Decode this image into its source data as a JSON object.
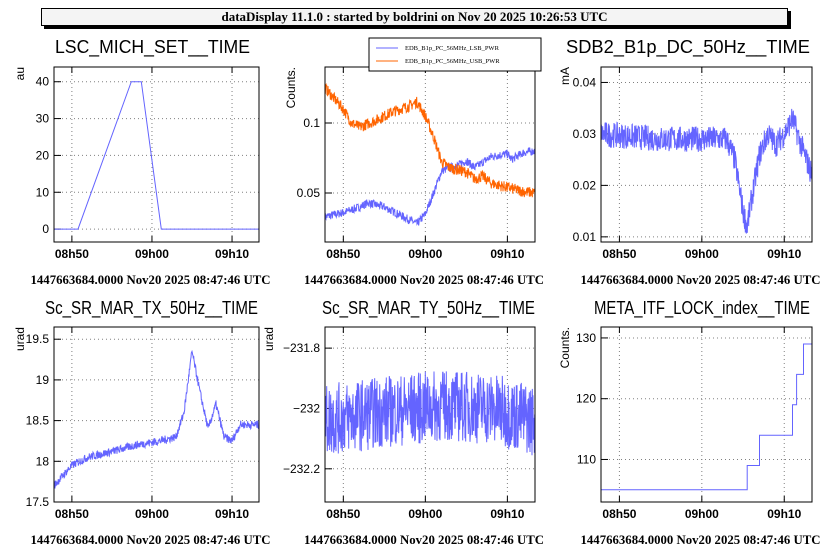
{
  "header": {
    "title": "dataDisplay 11.1.0 : started by boldrini on Nov 20 2025 10:26:53 UTC"
  },
  "footer_label": "1447663684.0000 Nov20 2025 08:47:46 UTC",
  "colors": {
    "blue": "#6464ff",
    "orange": "#ff6400",
    "frame": "#000000",
    "grid": "#808080"
  },
  "chart_data": [
    {
      "type": "line",
      "title": "LSC_MICH_SET__TIME",
      "ylabel": "au",
      "xlim": [
        "08:47:46",
        "09:13:22"
      ],
      "ylim": [
        -3.5,
        44
      ],
      "xticks": [
        "08h50",
        "09h00",
        "09h10"
      ],
      "yticks": [
        0,
        10,
        20,
        30,
        40
      ],
      "ytick_labels": [
        "0",
        "10",
        "20",
        "30",
        "40"
      ],
      "grid": true,
      "series": [
        {
          "color": "#6464ff",
          "noise": 0,
          "points": [
            [
              "08:47:46",
              0
            ],
            [
              "08:50:46",
              0
            ],
            [
              "08:57:25",
              40
            ],
            [
              "08:58:40",
              40
            ],
            [
              "09:01:10",
              0
            ],
            [
              "09:13:22",
              0
            ]
          ]
        }
      ]
    },
    {
      "type": "line",
      "title": "",
      "ylabel": "Counts.",
      "xlim": [
        "08:47:46",
        "09:13:22"
      ],
      "ylim": [
        0.015,
        0.14
      ],
      "xticks": [
        "08h50",
        "09h00",
        "09h10"
      ],
      "yticks": [
        0.05,
        0.1
      ],
      "ytick_labels": [
        "0.05",
        "0.1"
      ],
      "grid": true,
      "legend": "top",
      "series": [
        {
          "name": "EDB_B1p_PC_56MHz_LSB_PWR",
          "color": "#6464ff",
          "noise": 0.003,
          "points": [
            [
              "08:47:46",
              0.033
            ],
            [
              "08:50:00",
              0.036
            ],
            [
              "08:52:00",
              0.04
            ],
            [
              "08:53:00",
              0.043
            ],
            [
              "08:55:00",
              0.04
            ],
            [
              "08:58:00",
              0.031
            ],
            [
              "08:59:00",
              0.028
            ],
            [
              "09:00:00",
              0.035
            ],
            [
              "09:01:00",
              0.05
            ],
            [
              "09:02:00",
              0.066
            ],
            [
              "09:04:00",
              0.07
            ],
            [
              "09:05:00",
              0.073
            ],
            [
              "09:06:00",
              0.068
            ],
            [
              "09:07:00",
              0.072
            ],
            [
              "09:08:00",
              0.076
            ],
            [
              "09:10:00",
              0.078
            ],
            [
              "09:10:30",
              0.074
            ],
            [
              "09:12:00",
              0.079
            ],
            [
              "09:13:22",
              0.08
            ]
          ]
        },
        {
          "name": "EDB_B1p_PC_56MHz_USB_PWR",
          "color": "#ff6400",
          "noise": 0.004,
          "points": [
            [
              "08:47:46",
              0.125
            ],
            [
              "08:50:00",
              0.11
            ],
            [
              "08:51:00",
              0.1
            ],
            [
              "08:52:00",
              0.097
            ],
            [
              "08:54:00",
              0.102
            ],
            [
              "08:56:00",
              0.108
            ],
            [
              "08:58:00",
              0.112
            ],
            [
              "08:59:00",
              0.115
            ],
            [
              "09:00:00",
              0.105
            ],
            [
              "09:01:00",
              0.09
            ],
            [
              "09:02:00",
              0.072
            ],
            [
              "09:03:00",
              0.068
            ],
            [
              "09:05:00",
              0.065
            ],
            [
              "09:06:00",
              0.06
            ],
            [
              "09:07:00",
              0.062
            ],
            [
              "09:08:00",
              0.057
            ],
            [
              "09:10:00",
              0.054
            ],
            [
              "09:12:00",
              0.051
            ],
            [
              "09:13:22",
              0.05
            ]
          ]
        }
      ]
    },
    {
      "type": "line",
      "title": "SDB2_B1p_DC_50Hz__TIME",
      "ylabel": "mA",
      "xlim": [
        "08:47:46",
        "09:13:22"
      ],
      "ylim": [
        0.009,
        0.043
      ],
      "xticks": [
        "08h50",
        "09h00",
        "09h10"
      ],
      "yticks": [
        0.01,
        0.02,
        0.03,
        0.04
      ],
      "ytick_labels": [
        "0.01",
        "0.02",
        "0.03",
        "0.04"
      ],
      "grid": true,
      "series": [
        {
          "color": "#6464ff",
          "noise": 0.0025,
          "points": [
            [
              "08:47:46",
              0.03
            ],
            [
              "08:55:00",
              0.029
            ],
            [
              "09:03:00",
              0.029
            ],
            [
              "09:04:00",
              0.025
            ],
            [
              "09:05:00",
              0.015
            ],
            [
              "09:05:30",
              0.012
            ],
            [
              "09:06:00",
              0.017
            ],
            [
              "09:07:00",
              0.026
            ],
            [
              "09:08:00",
              0.03
            ],
            [
              "09:09:00",
              0.028
            ],
            [
              "09:10:00",
              0.03
            ],
            [
              "09:11:00",
              0.033
            ],
            [
              "09:12:00",
              0.028
            ],
            [
              "09:13:22",
              0.022
            ]
          ]
        }
      ]
    },
    {
      "type": "line",
      "title": "Sc_SR_MAR_TX_50Hz__TIME",
      "ylabel": "urad",
      "xlim": [
        "08:47:46",
        "09:13:22"
      ],
      "ylim": [
        17.5,
        19.65
      ],
      "xticks": [
        "08h50",
        "09h00",
        "09h10"
      ],
      "yticks": [
        17.5,
        18,
        18.5,
        19,
        19.5
      ],
      "ytick_labels": [
        "17.5",
        "18",
        "18.5",
        "19",
        "19.5"
      ],
      "grid": true,
      "series": [
        {
          "color": "#6464ff",
          "noise": 0.05,
          "points": [
            [
              "08:47:46",
              17.7
            ],
            [
              "08:50:00",
              17.95
            ],
            [
              "08:52:00",
              18.05
            ],
            [
              "08:55:00",
              18.12
            ],
            [
              "08:58:00",
              18.2
            ],
            [
              "09:01:00",
              18.25
            ],
            [
              "09:03:00",
              18.3
            ],
            [
              "09:04:00",
              18.6
            ],
            [
              "09:05:00",
              19.35
            ],
            [
              "09:06:00",
              18.85
            ],
            [
              "09:07:00",
              18.4
            ],
            [
              "09:08:00",
              18.7
            ],
            [
              "09:09:00",
              18.3
            ],
            [
              "09:10:00",
              18.25
            ],
            [
              "09:11:00",
              18.45
            ],
            [
              "09:13:22",
              18.45
            ]
          ]
        }
      ]
    },
    {
      "type": "line",
      "title": "Sc_SR_MAR_TY_50Hz__TIME",
      "ylabel": "urad",
      "xlim": [
        "08:47:46",
        "09:13:22"
      ],
      "ylim": [
        -232.31,
        -231.73
      ],
      "xticks": [
        "08h50",
        "09h00",
        "09h10"
      ],
      "yticks": [
        -232.2,
        -232,
        -231.8
      ],
      "ytick_labels": [
        "−232.2",
        "−232",
        "−231.8"
      ],
      "grid": true,
      "series": [
        {
          "color": "#6464ff",
          "noise": 0.12,
          "points": [
            [
              "08:47:46",
              -232.04
            ],
            [
              "08:55:00",
              -232.01
            ],
            [
              "09:03:00",
              -231.99
            ],
            [
              "09:08:00",
              -232.0
            ],
            [
              "09:13:22",
              -232.04
            ]
          ]
        }
      ]
    },
    {
      "type": "line",
      "title": "META_ITF_LOCK_index__TIME",
      "ylabel": "Counts.",
      "xlim": [
        "08:47:46",
        "09:13:22"
      ],
      "ylim": [
        103,
        131.8
      ],
      "xticks": [
        "08h50",
        "09h00",
        "09h10"
      ],
      "yticks": [
        110,
        120,
        130
      ],
      "ytick_labels": [
        "110",
        "120",
        "130"
      ],
      "grid": true,
      "series": [
        {
          "color": "#6464ff",
          "noise": 0,
          "step": true,
          "points": [
            [
              "08:47:46",
              105
            ],
            [
              "09:05:30",
              109
            ],
            [
              "09:07:00",
              114
            ],
            [
              "09:11:00",
              119
            ],
            [
              "09:11:30",
              124
            ],
            [
              "09:12:20",
              129
            ],
            [
              "09:13:22",
              129
            ]
          ]
        }
      ]
    }
  ]
}
